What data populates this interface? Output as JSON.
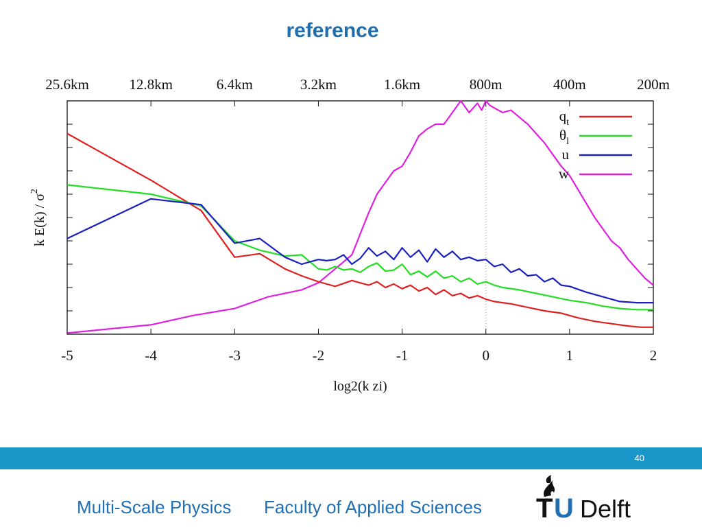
{
  "slide": {
    "title": "reference",
    "page_number": "40",
    "footer_left": "Multi-Scale Physics",
    "footer_center": "Faculty of Applied Sciences",
    "logo_text_1": "TU",
    "logo_text_2": "Delft"
  },
  "colors": {
    "title": "#1f6fae",
    "footer_bar": "#1b96c9",
    "footer_text": "#1e6fb5",
    "qt": "#e02020",
    "theta_l": "#22dd22",
    "u": "#1a20c0",
    "w": "#e020e0",
    "logo_dark": "#111111",
    "logo_blue": "#1e6fb5"
  },
  "chart_data": {
    "type": "line",
    "xlabel": "log2(k zi)",
    "ylabel": "k E(k) / σ",
    "ylabel_superscript": "2",
    "xlim": [
      -5,
      2
    ],
    "ylim": [
      0,
      1
    ],
    "x_ticks": [
      "-5",
      "-4",
      "-3",
      "-2",
      "-1",
      "0",
      "1",
      "2"
    ],
    "top_ticks": [
      "25.6km",
      "12.8km",
      "6.4km",
      "3.2km",
      "1.6km",
      "800m",
      "400m",
      "200m"
    ],
    "grid": false,
    "vertical_reference_line_x": 0,
    "legend_position": "top-right",
    "legend": [
      {
        "key": "qt",
        "base": "q",
        "sub": "t"
      },
      {
        "key": "theta_l",
        "base": "θ",
        "sub": "l"
      },
      {
        "key": "u",
        "base": "u",
        "sub": ""
      },
      {
        "key": "w",
        "base": "w",
        "sub": ""
      }
    ],
    "series": [
      {
        "key": "qt",
        "x": [
          -5,
          -4,
          -3.4,
          -3,
          -2.7,
          -2.4,
          -2.2,
          -2,
          -1.8,
          -1.6,
          -1.4,
          -1.3,
          -1.2,
          -1.1,
          -1.0,
          -0.9,
          -0.8,
          -0.7,
          -0.6,
          -0.5,
          -0.4,
          -0.3,
          -0.2,
          -0.1,
          0,
          0.1,
          0.2,
          0.3,
          0.5,
          0.7,
          0.9,
          1.1,
          1.3,
          1.5,
          1.7,
          1.85,
          2
        ],
        "y": [
          0.86,
          0.66,
          0.53,
          0.33,
          0.345,
          0.28,
          0.25,
          0.225,
          0.205,
          0.23,
          0.21,
          0.225,
          0.2,
          0.215,
          0.195,
          0.21,
          0.185,
          0.2,
          0.17,
          0.19,
          0.165,
          0.175,
          0.155,
          0.165,
          0.15,
          0.14,
          0.135,
          0.13,
          0.115,
          0.1,
          0.09,
          0.07,
          0.055,
          0.045,
          0.035,
          0.03,
          0.03
        ]
      },
      {
        "key": "theta_l",
        "x": [
          -5,
          -4,
          -3.4,
          -3,
          -2.7,
          -2.4,
          -2.2,
          -2,
          -1.9,
          -1.8,
          -1.7,
          -1.6,
          -1.5,
          -1.4,
          -1.3,
          -1.2,
          -1.1,
          -1.0,
          -0.9,
          -0.8,
          -0.7,
          -0.6,
          -0.5,
          -0.4,
          -0.3,
          -0.2,
          -0.1,
          0,
          0.1,
          0.2,
          0.4,
          0.6,
          0.8,
          1.0,
          1.2,
          1.4,
          1.6,
          1.8,
          2
        ],
        "y": [
          0.64,
          0.6,
          0.55,
          0.4,
          0.36,
          0.335,
          0.34,
          0.28,
          0.275,
          0.29,
          0.275,
          0.28,
          0.265,
          0.29,
          0.305,
          0.27,
          0.275,
          0.3,
          0.255,
          0.27,
          0.245,
          0.27,
          0.24,
          0.25,
          0.225,
          0.24,
          0.215,
          0.225,
          0.21,
          0.2,
          0.19,
          0.175,
          0.16,
          0.145,
          0.135,
          0.12,
          0.11,
          0.105,
          0.105
        ]
      },
      {
        "key": "u",
        "x": [
          -5,
          -4,
          -3.4,
          -3,
          -2.7,
          -2.4,
          -2.2,
          -2,
          -1.9,
          -1.8,
          -1.7,
          -1.6,
          -1.5,
          -1.4,
          -1.3,
          -1.2,
          -1.1,
          -1.0,
          -0.9,
          -0.8,
          -0.7,
          -0.6,
          -0.5,
          -0.4,
          -0.3,
          -0.2,
          -0.1,
          0,
          0.1,
          0.2,
          0.3,
          0.4,
          0.5,
          0.6,
          0.7,
          0.8,
          0.9,
          1.0,
          1.2,
          1.4,
          1.6,
          1.8,
          2
        ],
        "y": [
          0.41,
          0.58,
          0.555,
          0.39,
          0.41,
          0.33,
          0.3,
          0.32,
          0.315,
          0.32,
          0.34,
          0.3,
          0.325,
          0.37,
          0.335,
          0.355,
          0.32,
          0.37,
          0.33,
          0.36,
          0.31,
          0.365,
          0.33,
          0.355,
          0.32,
          0.33,
          0.315,
          0.32,
          0.29,
          0.3,
          0.265,
          0.28,
          0.25,
          0.255,
          0.225,
          0.24,
          0.21,
          0.205,
          0.18,
          0.16,
          0.14,
          0.135,
          0.135
        ]
      },
      {
        "key": "w",
        "x": [
          -5,
          -4,
          -3.5,
          -3,
          -2.6,
          -2.2,
          -2,
          -1.8,
          -1.6,
          -1.5,
          -1.4,
          -1.3,
          -1.2,
          -1.1,
          -1.0,
          -0.9,
          -0.8,
          -0.7,
          -0.6,
          -0.5,
          -0.4,
          -0.3,
          -0.2,
          -0.15,
          -0.1,
          -0.05,
          0,
          0.05,
          0.1,
          0.2,
          0.3,
          0.4,
          0.5,
          0.6,
          0.7,
          0.8,
          0.9,
          1.0,
          1.1,
          1.2,
          1.3,
          1.4,
          1.5,
          1.6,
          1.7,
          1.8,
          1.9,
          2
        ],
        "y": [
          0.005,
          0.04,
          0.08,
          0.11,
          0.16,
          0.19,
          0.22,
          0.28,
          0.34,
          0.43,
          0.52,
          0.6,
          0.65,
          0.7,
          0.72,
          0.78,
          0.85,
          0.88,
          0.9,
          0.9,
          0.95,
          1.0,
          0.95,
          0.97,
          0.99,
          0.96,
          1.0,
          0.98,
          0.97,
          0.95,
          0.96,
          0.93,
          0.9,
          0.86,
          0.82,
          0.77,
          0.72,
          0.68,
          0.62,
          0.56,
          0.5,
          0.45,
          0.4,
          0.37,
          0.32,
          0.28,
          0.24,
          0.21
        ]
      }
    ]
  }
}
